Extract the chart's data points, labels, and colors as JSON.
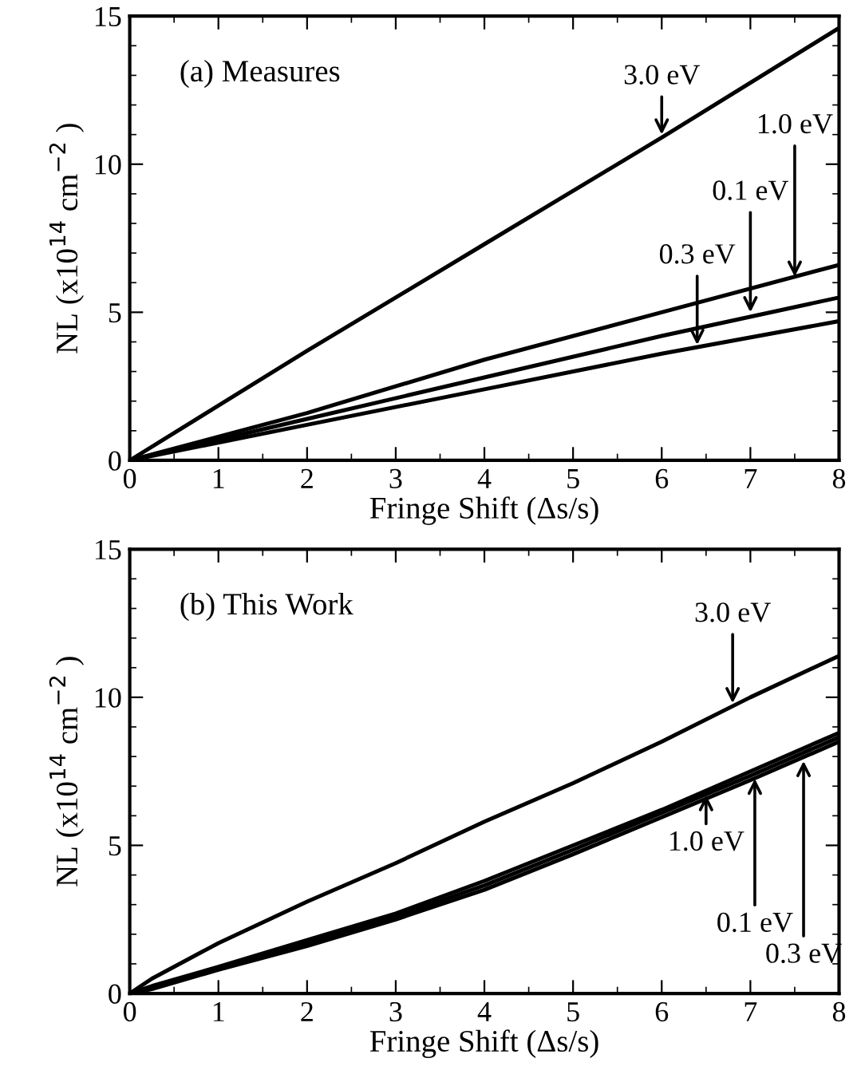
{
  "chart_data": [
    {
      "type": "line",
      "xlabel": "Fringe Shift (Δs/s)",
      "ylabel": "NL (x10$^{14}$ cm$^{−2}$ )",
      "xlim": [
        0,
        8
      ],
      "ylim": [
        0,
        15
      ],
      "xticks": [
        0,
        1,
        2,
        3,
        4,
        5,
        6,
        7,
        8
      ],
      "yticks": [
        0,
        5,
        10,
        15
      ],
      "grid": false,
      "legend": false,
      "marker": "none",
      "line_style": "solid",
      "x": [
        0,
        2,
        4,
        6,
        8
      ],
      "series": [
        {
          "color": "#000000",
          "values": [
            0,
            3.7,
            7.3,
            10.9,
            14.6
          ]
        },
        {
          "color": "#000000",
          "values": [
            0,
            1.6,
            3.4,
            5.0,
            6.6
          ]
        },
        {
          "color": "#000000",
          "values": [
            0,
            1.4,
            2.8,
            4.2,
            5.5
          ]
        },
        {
          "color": "#000000",
          "values": [
            0,
            1.2,
            2.4,
            3.6,
            4.7
          ]
        }
      ],
      "annotations": [
        "(a) Measures",
        {
          "text": "3.0 eV",
          "x": 6.0,
          "y": 11.0
        },
        {
          "text": "0.3 eV",
          "x": 6.4,
          "y": 3.9
        },
        {
          "text": "0.1 eV",
          "x": 7.0,
          "y": 5.0
        },
        {
          "text": "1.0 eV",
          "x": 7.5,
          "y": 6.2
        }
      ]
    },
    {
      "type": "line",
      "xlabel": "Fringe Shift (Δs/s)",
      "ylabel": "NL (x10$^{14}$ cm$^{−2}$ )",
      "xlim": [
        0,
        8
      ],
      "ylim": [
        0,
        15
      ],
      "xticks": [
        0,
        1,
        2,
        3,
        4,
        5,
        6,
        7,
        8
      ],
      "yticks": [
        0,
        5,
        10,
        15
      ],
      "grid": false,
      "legend": false,
      "marker": "none",
      "line_style": "solid",
      "x": [
        0,
        0.25,
        1,
        2,
        3,
        4,
        5,
        6,
        7,
        8
      ],
      "series": [
        {
          "color": "#000000",
          "values": [
            0,
            0.5,
            1.7,
            3.1,
            4.4,
            5.8,
            7.1,
            8.5,
            10.0,
            11.4
          ]
        },
        {
          "color": "#000000",
          "values": [
            0,
            0.25,
            0.9,
            1.8,
            2.7,
            3.8,
            5.0,
            6.2,
            7.5,
            8.8
          ]
        },
        {
          "color": "#000000",
          "values": [
            0,
            0.2,
            0.85,
            1.7,
            2.6,
            3.65,
            4.85,
            6.1,
            7.35,
            8.65
          ]
        },
        {
          "color": "#000000",
          "values": [
            0,
            0.15,
            0.8,
            1.6,
            2.5,
            3.5,
            4.7,
            5.95,
            7.2,
            8.5
          ]
        }
      ],
      "annotations": [
        "(b) This Work",
        {
          "text": "3.0 eV",
          "x": 6.8,
          "y": 9.8
        },
        {
          "text": "1.0 eV",
          "x": 6.5,
          "y": 6.85
        },
        {
          "text": "0.1 eV",
          "x": 7.05,
          "y": 7.4
        },
        {
          "text": "0.3 eV",
          "x": 7.6,
          "y": 8.0
        }
      ]
    }
  ]
}
